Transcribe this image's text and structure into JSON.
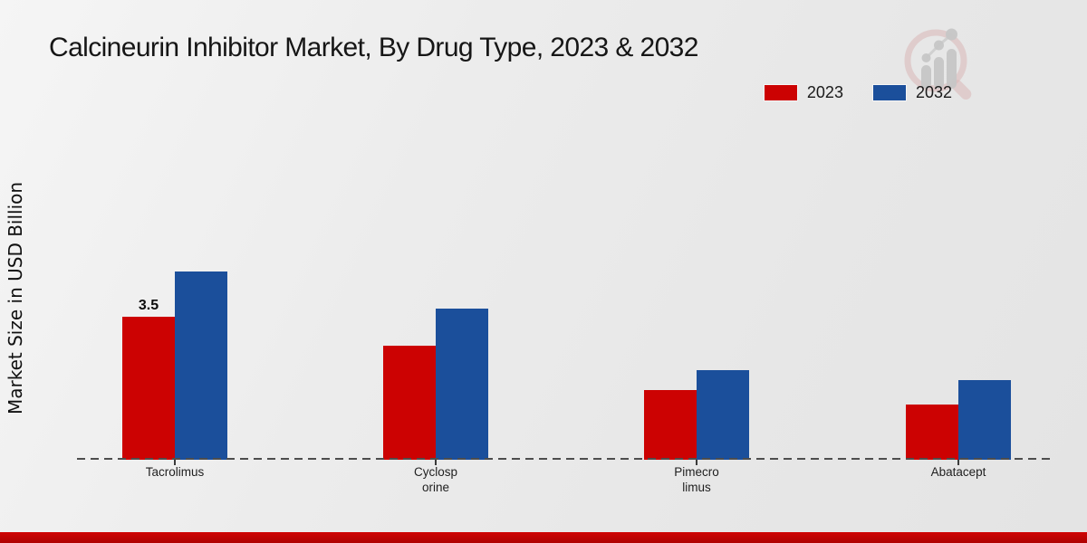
{
  "chart_data": {
    "type": "bar",
    "title": "Calcineurin Inhibitor Market, By Drug Type, 2023 & 2032",
    "xlabel": "",
    "ylabel": "Market Size in USD Billion",
    "categories": [
      "Tacrolimus",
      "Cyclosporine",
      "Pimecrolimus",
      "Abatacept"
    ],
    "category_display_lines": [
      [
        "Tacrolimus"
      ],
      [
        "Cyclosp",
        "orine"
      ],
      [
        "Pimecro",
        "limus"
      ],
      [
        "Abatacept"
      ]
    ],
    "series": [
      {
        "name": "2023",
        "color": "#cc0202",
        "values": [
          3.5,
          2.8,
          1.7,
          1.35
        ]
      },
      {
        "name": "2032",
        "color": "#1b4f9b",
        "values": [
          4.6,
          3.7,
          2.2,
          1.95
        ]
      }
    ],
    "bar_labels": [
      {
        "series": "2023",
        "category": "Tacrolimus",
        "text": "3.5"
      }
    ],
    "ylim": [
      0,
      5
    ],
    "grid": false,
    "legend_position": "top-right",
    "baseline_style": "dashed"
  },
  "branding": {
    "watermark_icon": "magnifier-bar-chart-logo",
    "footer_accent_color": "#c00202"
  },
  "colors": {
    "series_2023": "#cc0202",
    "series_2032": "#1b4f9b",
    "baseline": "#4d4d4d",
    "background": "#e9e9e9"
  }
}
